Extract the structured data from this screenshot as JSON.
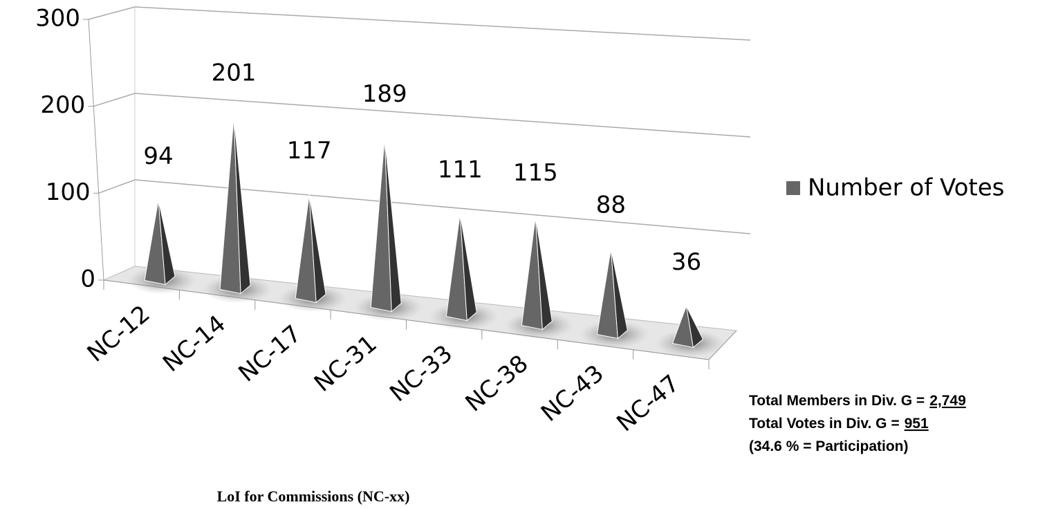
{
  "chart_data": {
    "type": "pyramid3d",
    "x_label": "LoI for Commissions (NC-xx)",
    "categories": [
      "NC-12",
      "NC-14",
      "NC-17",
      "NC-31",
      "NC-33",
      "NC-38",
      "NC-43",
      "NC-47"
    ],
    "series": [
      {
        "name": "Number of Votes",
        "color": "#666666",
        "values": [
          94,
          201,
          117,
          189,
          111,
          115,
          88,
          36
        ]
      }
    ],
    "ylim": [
      0,
      300
    ],
    "yticks": [
      0,
      100,
      200,
      300
    ],
    "grid": true,
    "legend": "right",
    "annotations": [
      {
        "text": "Total Members in Div. G =",
        "underlined": "2,749"
      },
      {
        "text": "Total Votes in Div. G =",
        "underlined": "951"
      },
      {
        "text": "(34.6 % = Participation)"
      }
    ]
  }
}
